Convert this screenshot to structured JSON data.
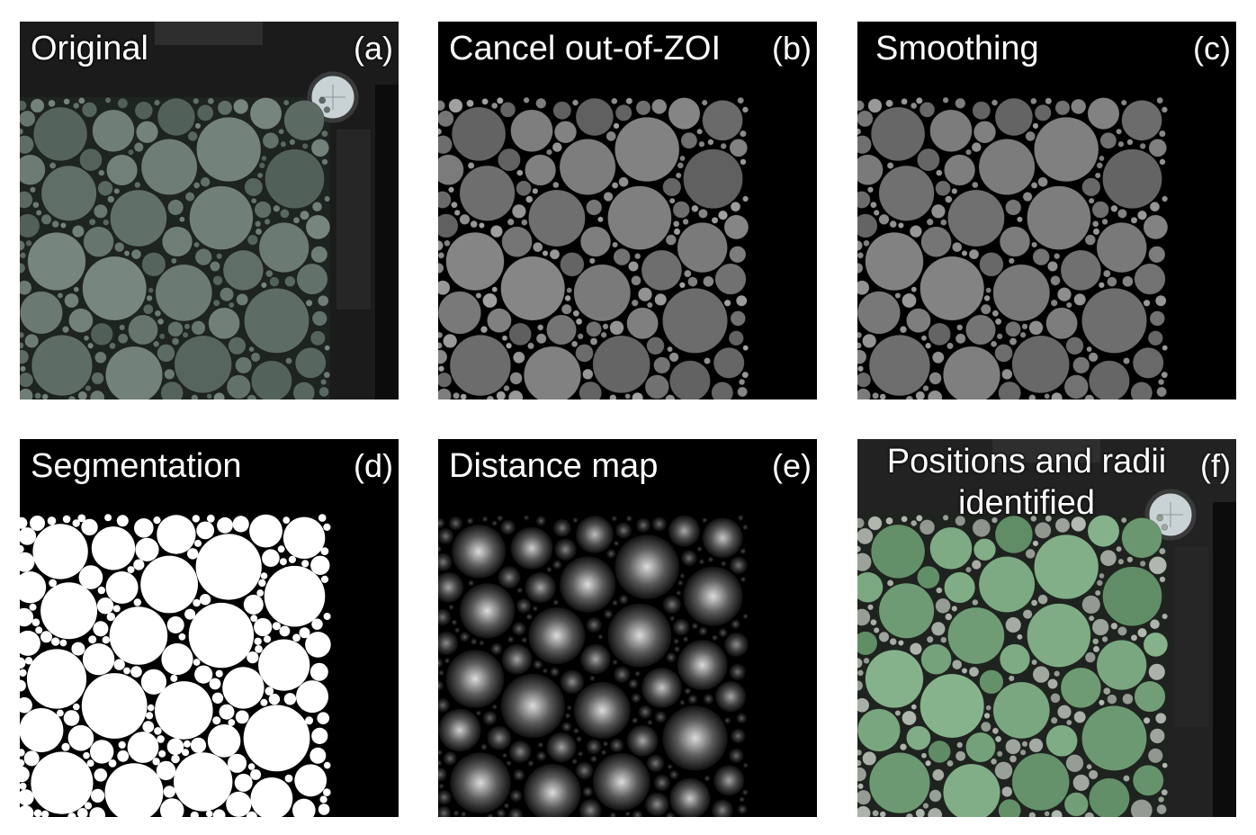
{
  "panels": [
    {
      "id": "a",
      "title": "Original",
      "letter": "(a)",
      "style": "original"
    },
    {
      "id": "b",
      "title": "Cancel out-of-ZOI",
      "letter": "(b)",
      "style": "gray"
    },
    {
      "id": "c",
      "title": "Smoothing",
      "letter": "(c)",
      "style": "smooth"
    },
    {
      "id": "d",
      "title": "Segmentation",
      "letter": "(d)",
      "style": "binary"
    },
    {
      "id": "e",
      "title": "Distance map",
      "letter": "(e)",
      "style": "distance"
    },
    {
      "id": "f",
      "title_line1": "Positions and radii",
      "title_line2": "identified",
      "letter": "(f)",
      "style": "identified"
    }
  ],
  "colors": {
    "original_disc": "#5e6b62",
    "gray_disc": "#7a7a7a",
    "identified_disc": "#6f9a6d",
    "frame_dark": "#1a1a1a"
  }
}
